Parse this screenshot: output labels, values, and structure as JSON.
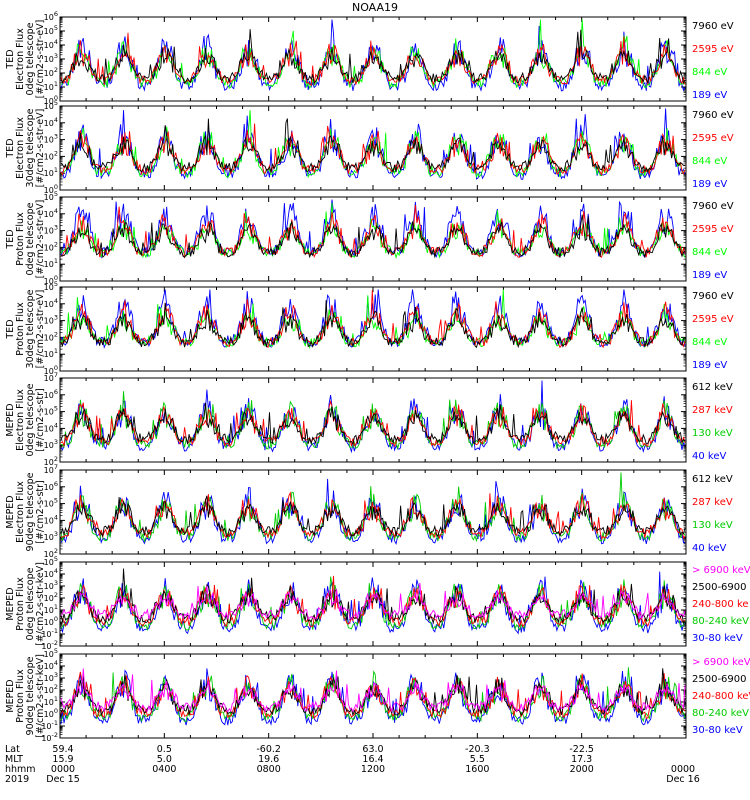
{
  "title": "NOAA19",
  "panels": [
    {
      "ylabel": [
        "TED",
        "Electron Flux",
        "0deg telescope",
        "[#/cm2-s-str-eV]"
      ],
      "exp_min": 0,
      "exp_max": 6,
      "legend": [
        {
          "text": "7960 eV",
          "color": "#000000"
        },
        {
          "text": "2595 eV",
          "color": "#ff0000"
        },
        {
          "text": "844 eV",
          "color": "#00ff00"
        },
        {
          "text": "189 eV",
          "color": "#0000ff"
        }
      ]
    },
    {
      "ylabel": [
        "TED",
        "Electron Flux",
        "30deg telescope",
        "[#/cm2-s-str-eV]"
      ],
      "exp_min": 0,
      "exp_max": 5,
      "legend": [
        {
          "text": "7960 eV",
          "color": "#000000"
        },
        {
          "text": "2595 eV",
          "color": "#ff0000"
        },
        {
          "text": "844 eV",
          "color": "#00ff00"
        },
        {
          "text": "189 eV",
          "color": "#0000ff"
        }
      ]
    },
    {
      "ylabel": [
        "TED",
        "Proton Flux",
        "0deg telescope",
        "[#/cm2-s-str-eV]"
      ],
      "exp_min": 0,
      "exp_max": 5,
      "legend": [
        {
          "text": "7960 eV",
          "color": "#000000"
        },
        {
          "text": "2595 eV",
          "color": "#ff0000"
        },
        {
          "text": "844 eV",
          "color": "#00ff00"
        },
        {
          "text": "189 eV",
          "color": "#0000ff"
        }
      ]
    },
    {
      "ylabel": [
        "TED",
        "Proton Flux",
        "30deg telescope",
        "[#/cm2-s-str-eV]"
      ],
      "exp_min": 0,
      "exp_max": 5,
      "legend": [
        {
          "text": "7960 eV",
          "color": "#000000"
        },
        {
          "text": "2595 eV",
          "color": "#ff0000"
        },
        {
          "text": "844 eV",
          "color": "#00ff00"
        },
        {
          "text": "189 eV",
          "color": "#0000ff"
        }
      ]
    },
    {
      "ylabel": [
        "MEPED",
        "Electron Flux",
        "0deg telescope",
        "[#/cm2-s-str]"
      ],
      "exp_min": 2,
      "exp_max": 7,
      "legend": [
        {
          "text": "612 keV",
          "color": "#000000"
        },
        {
          "text": "287 keV",
          "color": "#ff0000"
        },
        {
          "text": "130 keV",
          "color": "#00cc00"
        },
        {
          "text": "40 keV",
          "color": "#0000ff"
        }
      ]
    },
    {
      "ylabel": [
        "MEPED",
        "Electron Flux",
        "90deg telescope",
        "[#/cm2-s-str]"
      ],
      "exp_min": 2,
      "exp_max": 7,
      "legend": [
        {
          "text": "612 keV",
          "color": "#000000"
        },
        {
          "text": "287 keV",
          "color": "#ff0000"
        },
        {
          "text": "130 keV",
          "color": "#00cc00"
        },
        {
          "text": "40 keV",
          "color": "#0000ff"
        }
      ]
    },
    {
      "ylabel": [
        "MEPED",
        "Proton Flux",
        "0deg telescope",
        "[#/cm2-s-str-keV]"
      ],
      "exp_min": -2,
      "exp_max": 5,
      "legend": [
        {
          "text": "> 6900 keV",
          "color": "#ff00ff"
        },
        {
          "text": "2500-6900",
          "color": "#000000"
        },
        {
          "text": "240-800 ke",
          "color": "#ff0000"
        },
        {
          "text": "80-240 keV",
          "color": "#00cc00"
        },
        {
          "text": "30-80 keV",
          "color": "#0000ff"
        }
      ]
    },
    {
      "ylabel": [
        "MEPED",
        "Proton Flux",
        "90deg telescope",
        "[#/cm2-s-str-keV]"
      ],
      "exp_min": -2,
      "exp_max": 5,
      "legend": [
        {
          "text": "> 6900 keV",
          "color": "#ff00ff"
        },
        {
          "text": "2500-6900",
          "color": "#000000"
        },
        {
          "text": "240-800 keV",
          "color": "#ff0000"
        },
        {
          "text": "80-240 keV",
          "color": "#00cc00"
        },
        {
          "text": "30-80 keV",
          "color": "#0000ff"
        }
      ]
    }
  ],
  "footer": {
    "row_labels": [
      "Lat",
      "MLT",
      "hhmm",
      "2019"
    ],
    "columns": [
      {
        "lat": "59.4",
        "mlt": "15.9",
        "hhmm": "0000",
        "extra": "Dec 15"
      },
      {
        "lat": "0.5",
        "mlt": "5.0",
        "hhmm": "0400",
        "extra": ""
      },
      {
        "lat": "-60.2",
        "mlt": "19.6",
        "hhmm": "0800",
        "extra": ""
      },
      {
        "lat": "63.0",
        "mlt": "16.4",
        "hhmm": "1200",
        "extra": ""
      },
      {
        "lat": "-20.3",
        "mlt": "5.5",
        "hhmm": "1600",
        "extra": ""
      },
      {
        "lat": "-22.5",
        "mlt": "17.3",
        "hhmm": "2000",
        "extra": ""
      },
      {
        "lat": "",
        "mlt": "",
        "hhmm": "0000",
        "extra": "Dec 16"
      }
    ]
  },
  "chart_data": {
    "type": "line",
    "title": "NOAA19",
    "x_axis": "time (hhmm)",
    "x_ticks": [
      "0000",
      "0400",
      "0800",
      "1200",
      "1600",
      "2000",
      "0000"
    ],
    "x_range": [
      "2019 Dec 15 0000",
      "2019 Dec 16 0000"
    ],
    "y_scale": "log",
    "grid": false,
    "legend_placement": "right",
    "panel_count": 8
  }
}
